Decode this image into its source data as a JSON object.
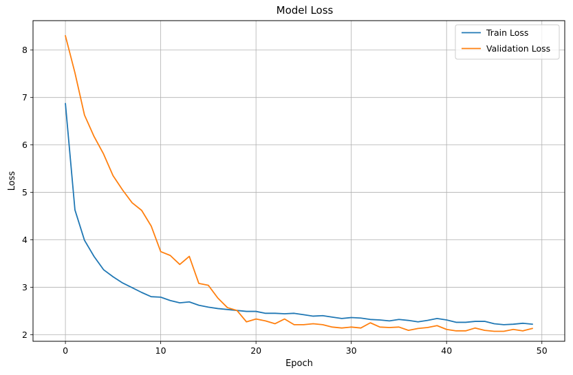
{
  "chart_data": {
    "type": "line",
    "title": "Model Loss",
    "xlabel": "Epoch",
    "ylabel": "Loss",
    "xlim": [
      -3.4,
      52.4
    ],
    "ylim": [
      1.86,
      8.62
    ],
    "xticks": [
      0,
      10,
      20,
      30,
      40,
      50
    ],
    "yticks": [
      2,
      3,
      4,
      5,
      6,
      7,
      8
    ],
    "grid": true,
    "legend_position": "top-right",
    "x": [
      0,
      1,
      2,
      3,
      4,
      5,
      6,
      7,
      8,
      9,
      10,
      11,
      12,
      13,
      14,
      15,
      16,
      17,
      18,
      19,
      20,
      21,
      22,
      23,
      24,
      25,
      26,
      27,
      28,
      29,
      30,
      31,
      32,
      33,
      34,
      35,
      36,
      37,
      38,
      39,
      40,
      41,
      42,
      43,
      44,
      45,
      46,
      47,
      48,
      49
    ],
    "series": [
      {
        "name": "Train Loss",
        "color": "#1f77b4",
        "values": [
          6.87,
          4.63,
          3.99,
          3.65,
          3.37,
          3.22,
          3.09,
          2.99,
          2.89,
          2.8,
          2.79,
          2.72,
          2.67,
          2.69,
          2.62,
          2.58,
          2.55,
          2.53,
          2.51,
          2.49,
          2.49,
          2.45,
          2.45,
          2.44,
          2.45,
          2.42,
          2.39,
          2.4,
          2.37,
          2.34,
          2.36,
          2.35,
          2.32,
          2.31,
          2.29,
          2.32,
          2.3,
          2.27,
          2.3,
          2.34,
          2.31,
          2.26,
          2.26,
          2.28,
          2.28,
          2.23,
          2.21,
          2.22,
          2.24,
          2.22
        ]
      },
      {
        "name": "Validation Loss",
        "color": "#ff7f0e",
        "values": [
          8.3,
          7.52,
          6.63,
          6.18,
          5.81,
          5.35,
          5.05,
          4.78,
          4.62,
          4.29,
          3.75,
          3.67,
          3.48,
          3.65,
          3.08,
          3.04,
          2.77,
          2.57,
          2.51,
          2.27,
          2.33,
          2.29,
          2.23,
          2.33,
          2.21,
          2.21,
          2.23,
          2.21,
          2.16,
          2.14,
          2.16,
          2.14,
          2.25,
          2.16,
          2.15,
          2.16,
          2.09,
          2.13,
          2.15,
          2.19,
          2.11,
          2.08,
          2.08,
          2.14,
          2.09,
          2.07,
          2.07,
          2.11,
          2.08,
          2.13
        ]
      }
    ]
  }
}
